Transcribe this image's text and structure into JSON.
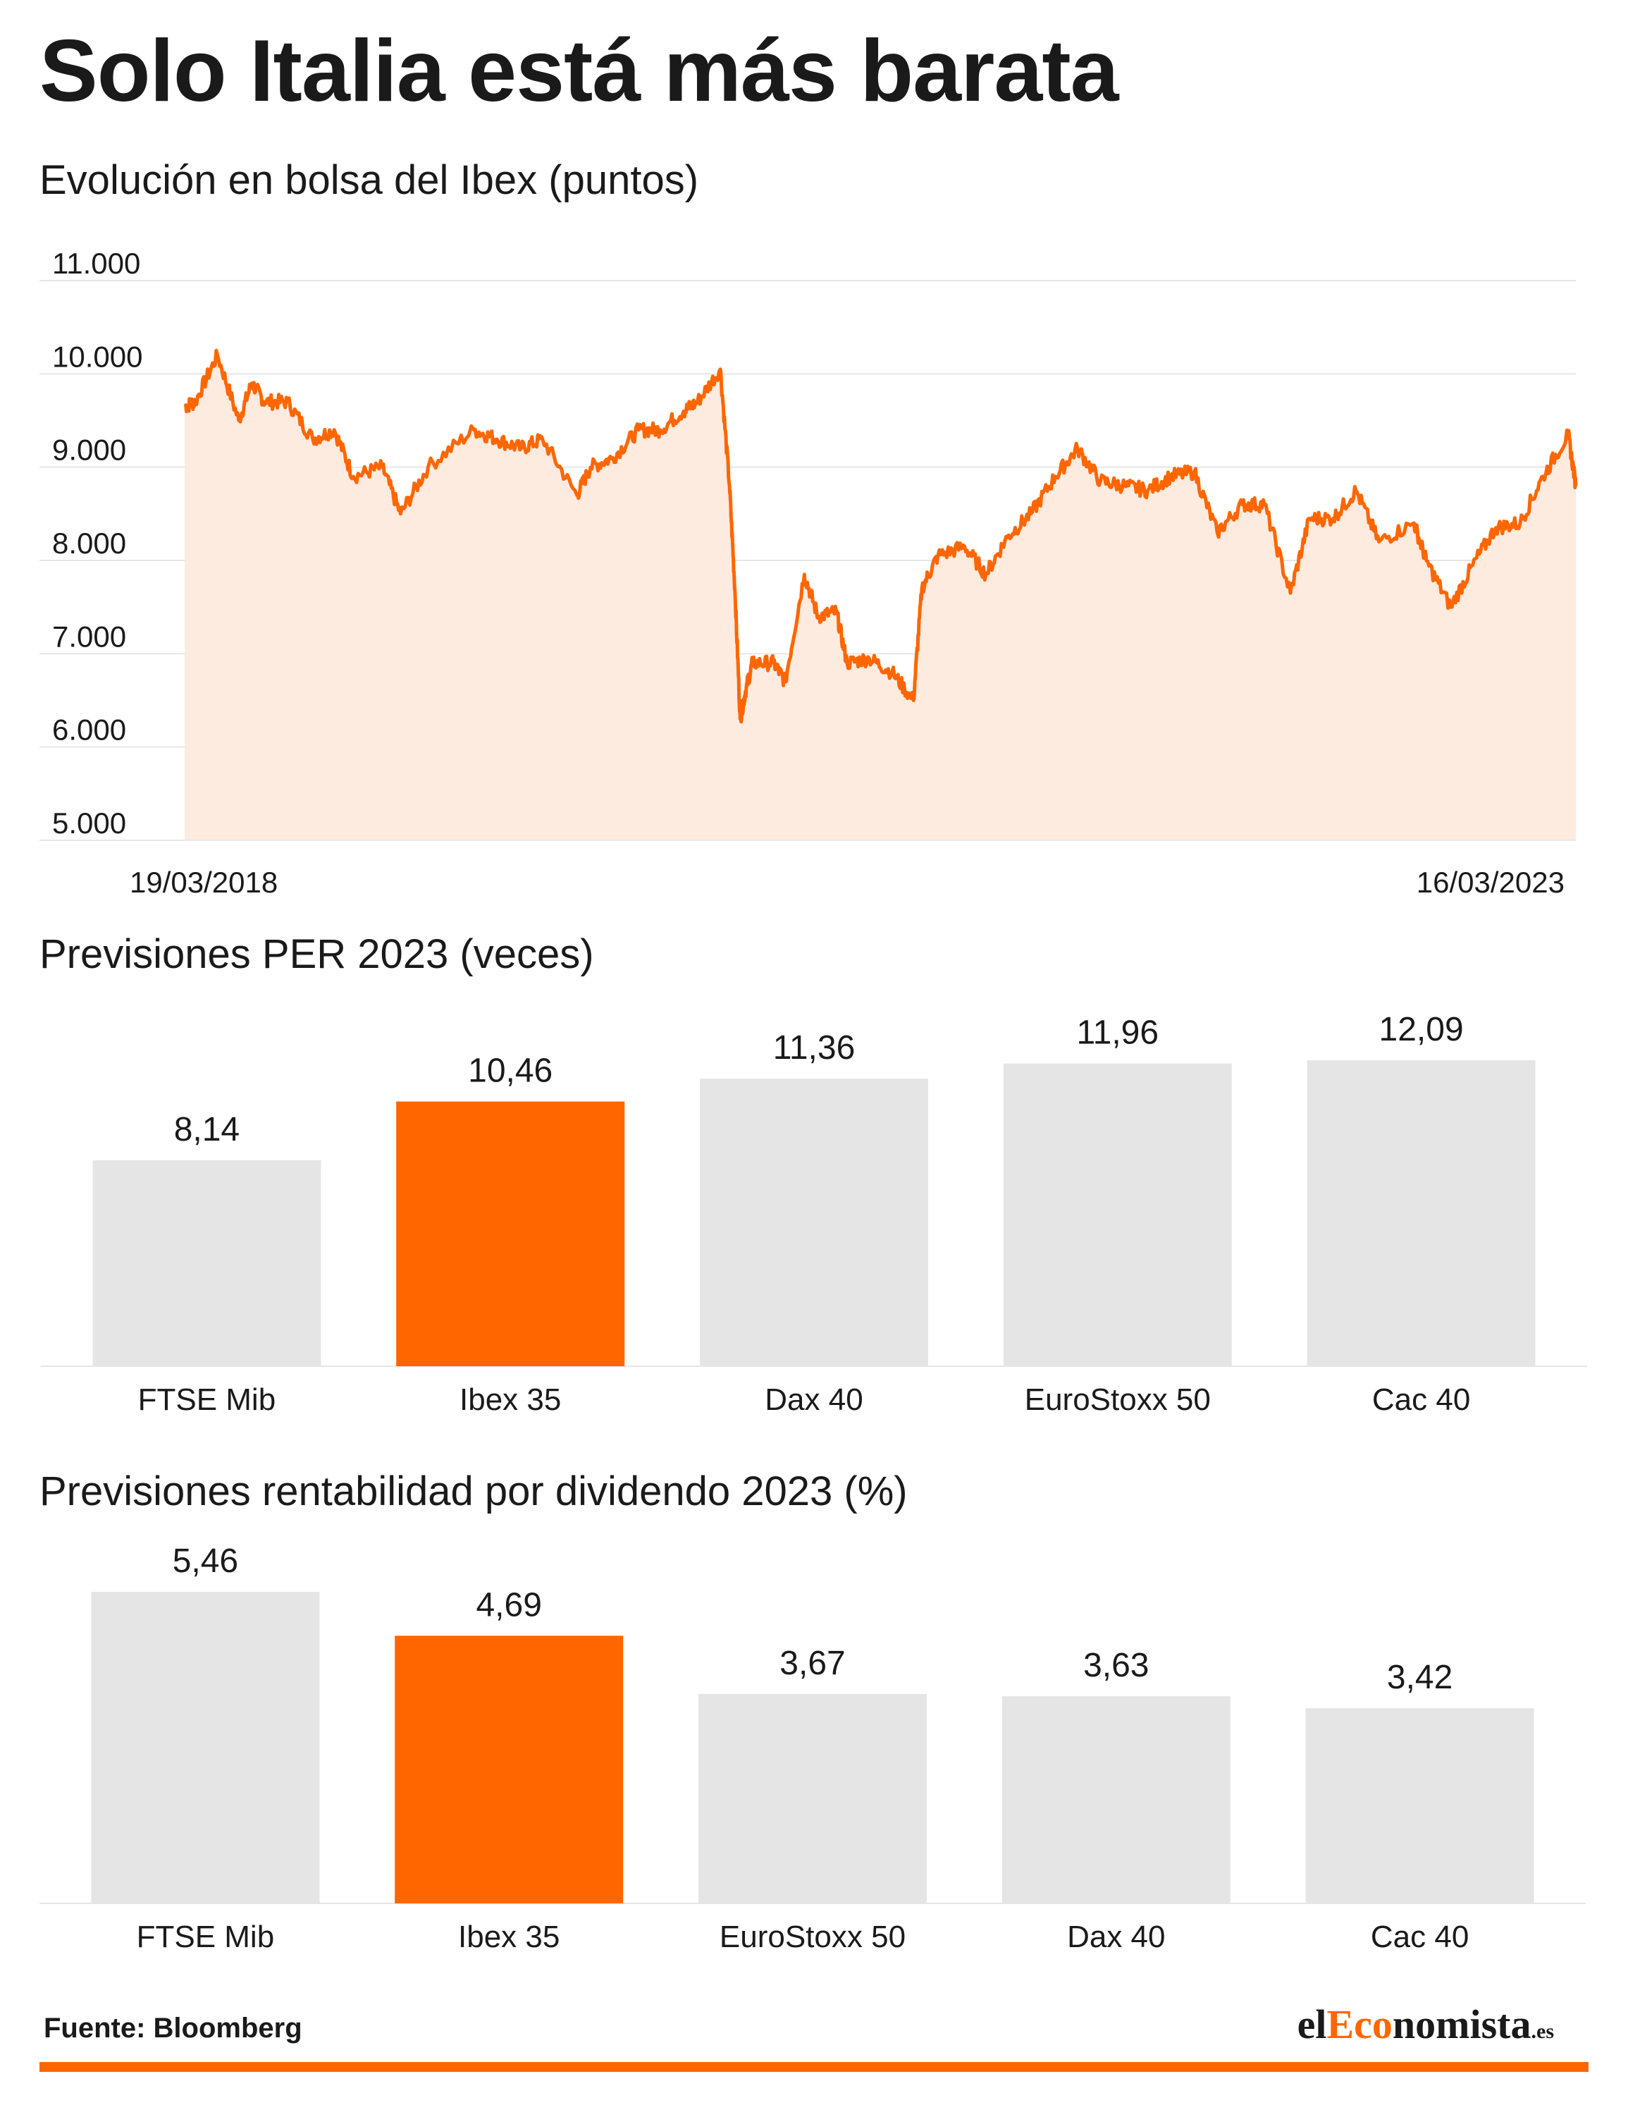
{
  "title": "Solo Italia está más barata",
  "source": "Fuente: Bloomberg",
  "logo": {
    "pre": "el",
    "mid": "Eco",
    "post": "nomista",
    "tld": ".es"
  },
  "colors": {
    "accent": "#ff6600",
    "bar": "#e5e5e5",
    "area": "#fdebe0",
    "grid": "#e6e6e6"
  },
  "chart_data": [
    {
      "type": "area",
      "title": "Evolución en bolsa del Ibex (puntos)",
      "ylim": [
        5000,
        11000
      ],
      "yticks": [
        "11.000",
        "10.000",
        "9.000",
        "8.000",
        "7.000",
        "6.000",
        "5.000"
      ],
      "ytick_values": [
        11000,
        10000,
        9000,
        8000,
        7000,
        6000,
        5000
      ],
      "xlabels": [
        "19/03/2018",
        "16/03/2023"
      ],
      "grid": true,
      "series": [
        {
          "x": [
            "2018-03-19",
            "2018-04-02",
            "2018-05-01",
            "2018-05-29",
            "2018-06-15",
            "2018-07-02",
            "2018-08-01",
            "2018-09-03",
            "2018-10-01",
            "2018-10-26",
            "2018-12-03",
            "2018-12-27",
            "2019-02-01",
            "2019-04-02",
            "2019-05-02",
            "2019-06-03",
            "2019-07-01",
            "2019-08-15",
            "2019-09-02",
            "2019-10-01",
            "2019-11-04",
            "2019-12-02",
            "2020-01-02",
            "2020-01-20",
            "2020-02-19",
            "2020-03-02",
            "2020-03-09",
            "2020-03-16",
            "2020-03-23",
            "2020-04-01",
            "2020-04-29",
            "2020-05-14",
            "2020-06-08",
            "2020-06-26",
            "2020-07-20",
            "2020-08-03",
            "2020-09-01",
            "2020-10-01",
            "2020-10-29",
            "2020-11-09",
            "2020-11-30",
            "2021-01-04",
            "2021-02-01",
            "2021-03-01",
            "2021-04-01",
            "2021-05-03",
            "2021-06-01",
            "2021-07-01",
            "2021-08-02",
            "2021-09-01",
            "2021-10-01",
            "2021-11-01",
            "2021-12-01",
            "2022-01-03",
            "2022-02-01",
            "2022-03-07",
            "2022-04-01",
            "2022-05-02",
            "2022-06-01",
            "2022-07-01",
            "2022-08-16",
            "2022-09-01",
            "2022-10-03",
            "2022-11-01",
            "2022-12-01",
            "2023-01-02",
            "2023-02-01",
            "2023-03-06",
            "2023-03-16"
          ],
          "values": [
            9650,
            9700,
            10200,
            9500,
            9900,
            9700,
            9700,
            9300,
            9400,
            8900,
            9000,
            8500,
            9000,
            9400,
            9300,
            9200,
            9300,
            8700,
            9000,
            9100,
            9400,
            9400,
            9600,
            9700,
            10050,
            8800,
            7700,
            6300,
            6600,
            6900,
            6900,
            6700,
            7850,
            7400,
            7450,
            6900,
            6950,
            6800,
            6500,
            7700,
            8050,
            8150,
            7850,
            8250,
            8500,
            8900,
            9200,
            8850,
            8800,
            8750,
            8900,
            8950,
            8300,
            8600,
            8600,
            7650,
            8450,
            8450,
            8750,
            8200,
            8400,
            8000,
            7500,
            7950,
            8350,
            8400,
            8900,
            9350,
            8800
          ]
        }
      ]
    },
    {
      "type": "bar",
      "title": "Previsiones PER 2023 (veces)",
      "categories": [
        "FTSE Mib",
        "Ibex 35",
        "Dax 40",
        "EuroStoxx 50",
        "Cac 40"
      ],
      "values": [
        8.14,
        10.46,
        11.36,
        11.96,
        12.09
      ],
      "labels": [
        "8,14",
        "10,46",
        "11,36",
        "11,96",
        "12,09"
      ],
      "highlight": "Ibex 35",
      "ylim": [
        0,
        12.09
      ]
    },
    {
      "type": "bar",
      "title": "Previsiones rentabilidad por dividendo 2023 (%)",
      "categories": [
        "FTSE Mib",
        "Ibex 35",
        "EuroStoxx 50",
        "Dax 40",
        "Cac 40"
      ],
      "values": [
        5.46,
        4.69,
        3.67,
        3.63,
        3.42
      ],
      "labels": [
        "5,46",
        "4,69",
        "3,67",
        "3,63",
        "3,42"
      ],
      "highlight": "Ibex 35",
      "ylim": [
        0,
        5.46
      ]
    }
  ]
}
